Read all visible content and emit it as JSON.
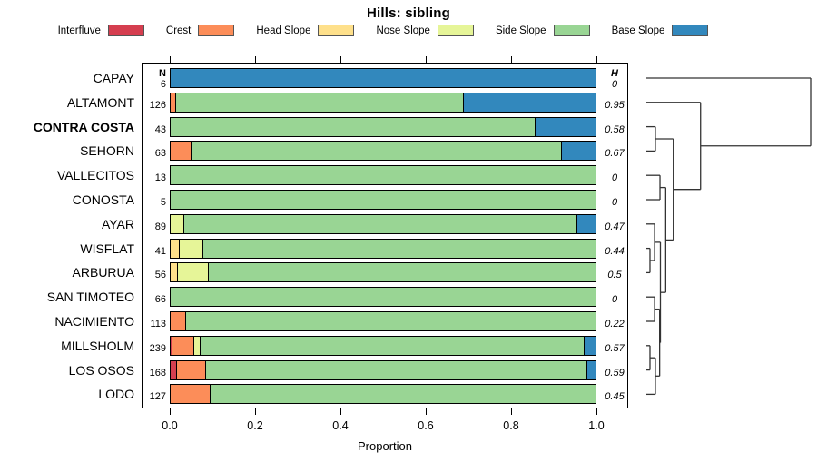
{
  "title": "Hills: sibling",
  "axis": {
    "label": "Proportion",
    "ticks": [
      "0.0",
      "0.2",
      "0.4",
      "0.6",
      "0.8",
      "1.0"
    ],
    "tick_values": [
      0,
      0.2,
      0.4,
      0.6,
      0.8,
      1.0
    ]
  },
  "columns": {
    "n_header": "N",
    "h_header": "H"
  },
  "legend": {
    "items": [
      {
        "label": "Interfluve",
        "color": "#D53E4F"
      },
      {
        "label": "Crest",
        "color": "#FC8D59"
      },
      {
        "label": "Head Slope",
        "color": "#FEE08B"
      },
      {
        "label": "Nose Slope",
        "color": "#E6F598"
      },
      {
        "label": "Side Slope",
        "color": "#99D594"
      },
      {
        "label": "Base Slope",
        "color": "#3288BD"
      }
    ]
  },
  "chart_data": {
    "type": "bar",
    "subtype": "horizontal-stacked-with-dendrogram",
    "title": "Hills: sibling",
    "xlabel": "Proportion",
    "xlim": [
      0,
      1
    ],
    "categories": [
      "Interfluve",
      "Crest",
      "Head Slope",
      "Nose Slope",
      "Side Slope",
      "Base Slope"
    ],
    "colors": {
      "Interfluve": "#D53E4F",
      "Crest": "#FC8D59",
      "Head Slope": "#FEE08B",
      "Nose Slope": "#E6F598",
      "Side Slope": "#99D594",
      "Base Slope": "#3288BD"
    },
    "rows": [
      {
        "label": "CAPAY",
        "bold": false,
        "n": "6",
        "h": "0",
        "segments": [
          {
            "name": "Base Slope",
            "p": 1.0
          }
        ]
      },
      {
        "label": "ALTAMONT",
        "bold": false,
        "n": "126",
        "h": "0.95",
        "segments": [
          {
            "name": "Crest",
            "p": 0.012
          },
          {
            "name": "Side Slope",
            "p": 0.678
          },
          {
            "name": "Base Slope",
            "p": 0.31
          }
        ]
      },
      {
        "label": "CONTRA COSTA",
        "bold": true,
        "n": "43",
        "h": "0.58",
        "segments": [
          {
            "name": "Side Slope",
            "p": 0.86
          },
          {
            "name": "Base Slope",
            "p": 0.14
          }
        ]
      },
      {
        "label": "SEHORN",
        "bold": false,
        "n": "63",
        "h": "0.67",
        "segments": [
          {
            "name": "Crest",
            "p": 0.05
          },
          {
            "name": "Side Slope",
            "p": 0.87
          },
          {
            "name": "Base Slope",
            "p": 0.08
          }
        ]
      },
      {
        "label": "VALLECITOS",
        "bold": false,
        "n": "13",
        "h": "0",
        "segments": [
          {
            "name": "Side Slope",
            "p": 1.0
          }
        ]
      },
      {
        "label": "CONOSTA",
        "bold": false,
        "n": "5",
        "h": "0",
        "segments": [
          {
            "name": "Side Slope",
            "p": 1.0
          }
        ]
      },
      {
        "label": "AYAR",
        "bold": false,
        "n": "89",
        "h": "0.47",
        "segments": [
          {
            "name": "Nose Slope",
            "p": 0.033
          },
          {
            "name": "Side Slope",
            "p": 0.924
          },
          {
            "name": "Base Slope",
            "p": 0.043
          }
        ]
      },
      {
        "label": "WISFLAT",
        "bold": false,
        "n": "41",
        "h": "0.44",
        "segments": [
          {
            "name": "Head Slope",
            "p": 0.022
          },
          {
            "name": "Nose Slope",
            "p": 0.054
          },
          {
            "name": "Side Slope",
            "p": 0.924
          }
        ]
      },
      {
        "label": "ARBURUA",
        "bold": false,
        "n": "56",
        "h": "0.5",
        "segments": [
          {
            "name": "Head Slope",
            "p": 0.018
          },
          {
            "name": "Nose Slope",
            "p": 0.072
          },
          {
            "name": "Side Slope",
            "p": 0.91
          }
        ]
      },
      {
        "label": "SAN TIMOTEO",
        "bold": false,
        "n": "66",
        "h": "0",
        "segments": [
          {
            "name": "Side Slope",
            "p": 1.0
          }
        ]
      },
      {
        "label": "NACIMIENTO",
        "bold": false,
        "n": "113",
        "h": "0.22",
        "segments": [
          {
            "name": "Crest",
            "p": 0.036
          },
          {
            "name": "Side Slope",
            "p": 0.964
          }
        ]
      },
      {
        "label": "MILLSHOLM",
        "bold": false,
        "n": "239",
        "h": "0.57",
        "segments": [
          {
            "name": "Interfluve",
            "p": 0.004
          },
          {
            "name": "Crest",
            "p": 0.051
          },
          {
            "name": "Nose Slope",
            "p": 0.016
          },
          {
            "name": "Side Slope",
            "p": 0.904
          },
          {
            "name": "Base Slope",
            "p": 0.025
          }
        ]
      },
      {
        "label": "LOS OSOS",
        "bold": false,
        "n": "168",
        "h": "0.59",
        "segments": [
          {
            "name": "Interfluve",
            "p": 0.015
          },
          {
            "name": "Crest",
            "p": 0.068
          },
          {
            "name": "Side Slope",
            "p": 0.897
          },
          {
            "name": "Base Slope",
            "p": 0.02
          }
        ]
      },
      {
        "label": "LODO",
        "bold": false,
        "n": "127",
        "h": "0.45",
        "segments": [
          {
            "name": "Crest",
            "p": 0.095
          },
          {
            "name": "Side Slope",
            "p": 0.905
          }
        ]
      }
    ],
    "dendrogram": {
      "max_height": 1.0,
      "tree": {
        "h": 1.0,
        "c": [
          0,
          {
            "h": 0.33,
            "c": [
              1,
              {
                "h": 0.164,
                "c": [
                  {
                    "h": 0.055,
                    "c": [
                      2,
                      3
                    ]
                  },
                  {
                    "h": 0.118,
                    "c": [
                      {
                        "h": 0.083,
                        "c": [
                          4,
                          5
                        ]
                      },
                      {
                        "h": 0.0856,
                        "c": [
                          {
                            "h": 0.05,
                            "c": [
                              6,
                              {
                                "h": 0.022,
                                "c": [
                                  7,
                                  8
                                ]
                              }
                            ]
                          },
                          {
                            "h": 0.081,
                            "c": [
                              {
                                "h": 0.05,
                                "c": [
                                  9,
                                  10
                                ]
                              },
                              {
                                "h": 0.055,
                                "c": [
                                  {
                                    "h": 0.022,
                                    "c": [
                                      11,
                                      12
                                    ]
                                  },
                                  13
                                ]
                              }
                            ]
                          }
                        ]
                      }
                    ]
                  }
                ]
              }
            ]
          }
        ]
      }
    }
  }
}
